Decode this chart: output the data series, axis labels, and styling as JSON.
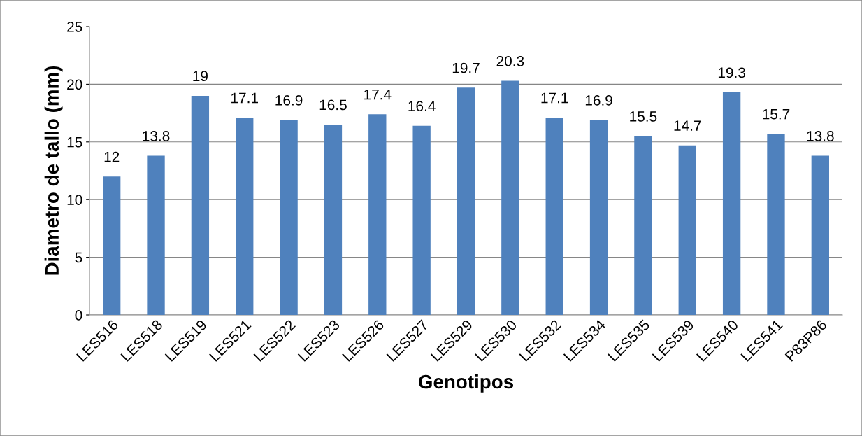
{
  "chart_data": {
    "type": "bar",
    "xlabel": "Genotipos",
    "ylabel": "Diametro de tallo (mm)",
    "categories": [
      "LES516",
      "LES518",
      "LES519",
      "LES521",
      "LES522",
      "LES523",
      "LES526",
      "LES527",
      "LES529",
      "LES530",
      "LES532",
      "LES534",
      "LES535",
      "LES539",
      "LES540",
      "LES541",
      "P83P86"
    ],
    "values": [
      12,
      13.8,
      19,
      17.1,
      16.9,
      16.5,
      17.4,
      16.4,
      19.7,
      20.3,
      17.1,
      16.9,
      15.5,
      14.7,
      19.3,
      15.7,
      13.8
    ],
    "color": "#4f81bd",
    "ylim": [
      0,
      25
    ],
    "yticks": [
      0,
      5,
      10,
      15,
      20,
      25
    ],
    "grid": "y",
    "data_labels": true,
    "legend": false
  }
}
